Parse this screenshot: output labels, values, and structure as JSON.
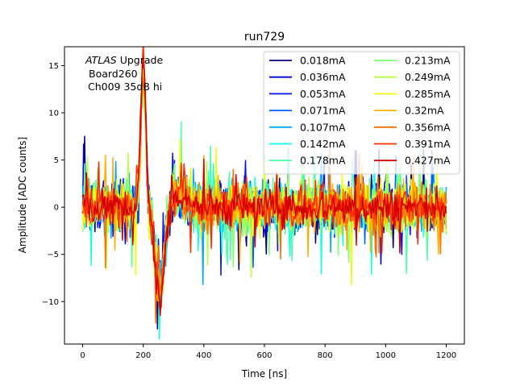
{
  "chart_data": {
    "type": "line",
    "title": "run729",
    "xlabel": "Time [ns]",
    "ylabel": "Amplitude [ADC counts]",
    "xlim": [
      -60,
      1260
    ],
    "ylim": [
      -14.5,
      17
    ],
    "xticks": [
      0,
      200,
      400,
      600,
      800,
      1000,
      1200
    ],
    "yticks": [
      -10,
      -5,
      0,
      5,
      10,
      15
    ],
    "xtick_labels": [
      "0",
      "200",
      "400",
      "600",
      "800",
      "1000",
      "1200"
    ],
    "ytick_labels": [
      "−10",
      "−5",
      "0",
      "5",
      "10",
      "15"
    ],
    "grid": false,
    "legend_position": "top-right",
    "legend_columns": 2,
    "annotation": {
      "line1_italic": "ATLAS",
      "line1_rest": " Upgrade",
      "line2": "Board260",
      "line3": "Ch009 35dB hi"
    },
    "series": [
      {
        "name": "0.018mA",
        "color": "#00007f",
        "noise_amplitude": 4.2,
        "pulse_peak": 14.0,
        "pulse_min": -11.5
      },
      {
        "name": "0.036mA",
        "color": "#0000d4",
        "noise_amplitude": 4.0,
        "pulse_peak": 14.0,
        "pulse_min": -11.5
      },
      {
        "name": "0.053mA",
        "color": "#0010ff",
        "noise_amplitude": 4.0,
        "pulse_peak": 14.0,
        "pulse_min": -11.5
      },
      {
        "name": "0.071mA",
        "color": "#005cff",
        "noise_amplitude": 4.0,
        "pulse_peak": 14.0,
        "pulse_min": -11.5
      },
      {
        "name": "0.107mA",
        "color": "#00a8ff",
        "noise_amplitude": 4.2,
        "pulse_peak": 14.0,
        "pulse_min": -11.5
      },
      {
        "name": "0.142mA",
        "color": "#16ffe1",
        "noise_amplitude": 4.2,
        "pulse_peak": 14.0,
        "pulse_min": -11.5
      },
      {
        "name": "0.178mA",
        "color": "#4dffaa",
        "noise_amplitude": 4.4,
        "pulse_peak": 14.0,
        "pulse_min": -11.5
      },
      {
        "name": "0.213mA",
        "color": "#83ff73",
        "noise_amplitude": 4.4,
        "pulse_peak": 14.0,
        "pulse_min": -11.5
      },
      {
        "name": "0.249mA",
        "color": "#b7ff40",
        "noise_amplitude": 4.6,
        "pulse_peak": 14.0,
        "pulse_min": -11.5
      },
      {
        "name": "0.285mA",
        "color": "#f0ff07",
        "noise_amplitude": 4.2,
        "pulse_peak": 14.0,
        "pulse_min": -11.5
      },
      {
        "name": "0.32mA",
        "color": "#ffb000",
        "noise_amplitude": 4.0,
        "pulse_peak": 14.0,
        "pulse_min": -11.5
      },
      {
        "name": "0.356mA",
        "color": "#ff6f00",
        "noise_amplitude": 3.8,
        "pulse_peak": 14.0,
        "pulse_min": -12.0
      },
      {
        "name": "0.391mA",
        "color": "#ff2a00",
        "noise_amplitude": 3.4,
        "pulse_peak": 14.5,
        "pulse_min": -12.5
      },
      {
        "name": "0.427mA",
        "color": "#d40000",
        "noise_amplitude": 3.0,
        "pulse_peak": 15.5,
        "pulse_min": -13.2
      }
    ],
    "x_range": [
      0,
      1200
    ],
    "sample_step_ns": 3.125
  }
}
